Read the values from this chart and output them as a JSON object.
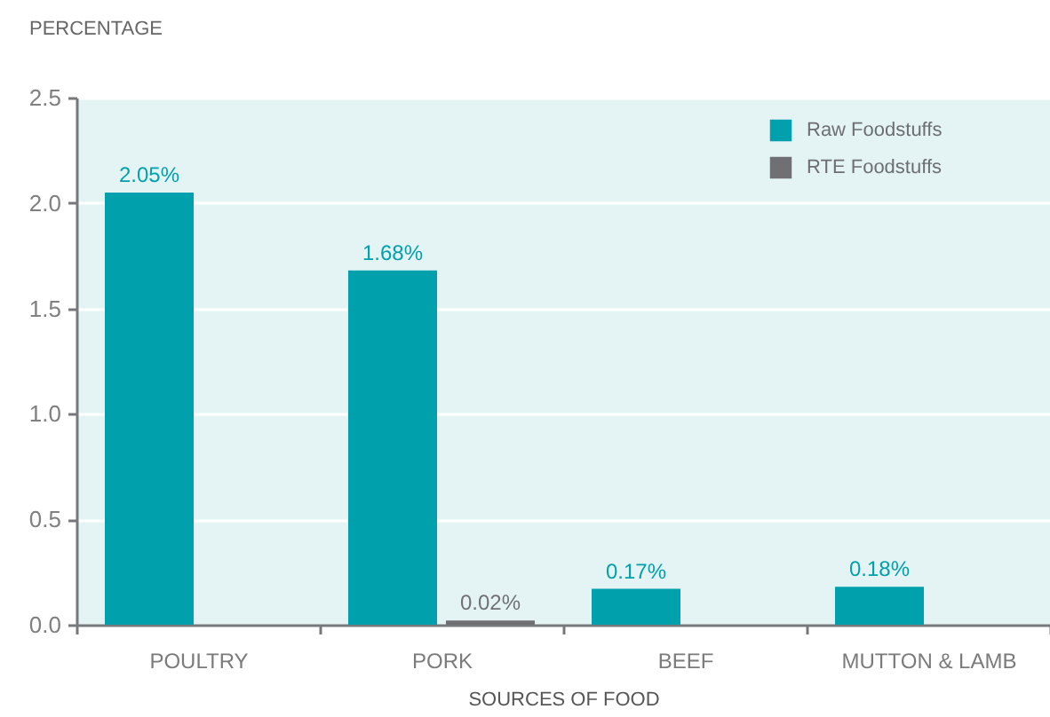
{
  "chart_data": {
    "type": "bar",
    "ylabel": "PERCENTAGE",
    "xlabel": "SOURCES OF FOOD",
    "categories": [
      "POULTRY",
      "PORK",
      "BEEF",
      "MUTTON & LAMB"
    ],
    "series": [
      {
        "name": "Raw Foodstuffs",
        "color": "#00a0ad",
        "values": [
          2.05,
          1.68,
          0.17,
          0.18
        ],
        "value_labels": [
          "2.05%",
          "1.68%",
          "0.17%",
          "0.18%"
        ]
      },
      {
        "name": "RTE Foodstuffs",
        "color": "#707074",
        "values": [
          null,
          0.02,
          null,
          null
        ],
        "value_labels": [
          null,
          "0.02%",
          null,
          null
        ]
      }
    ],
    "ylim": [
      0,
      2.5
    ],
    "yticks": [
      {
        "value": 0,
        "label": "0.0"
      },
      0.5,
      {
        "value": 1,
        "label": "1.0"
      },
      1.5,
      {
        "value": 2,
        "label": "2.0"
      },
      2.5
    ],
    "grid": "y",
    "legend": "top right"
  }
}
